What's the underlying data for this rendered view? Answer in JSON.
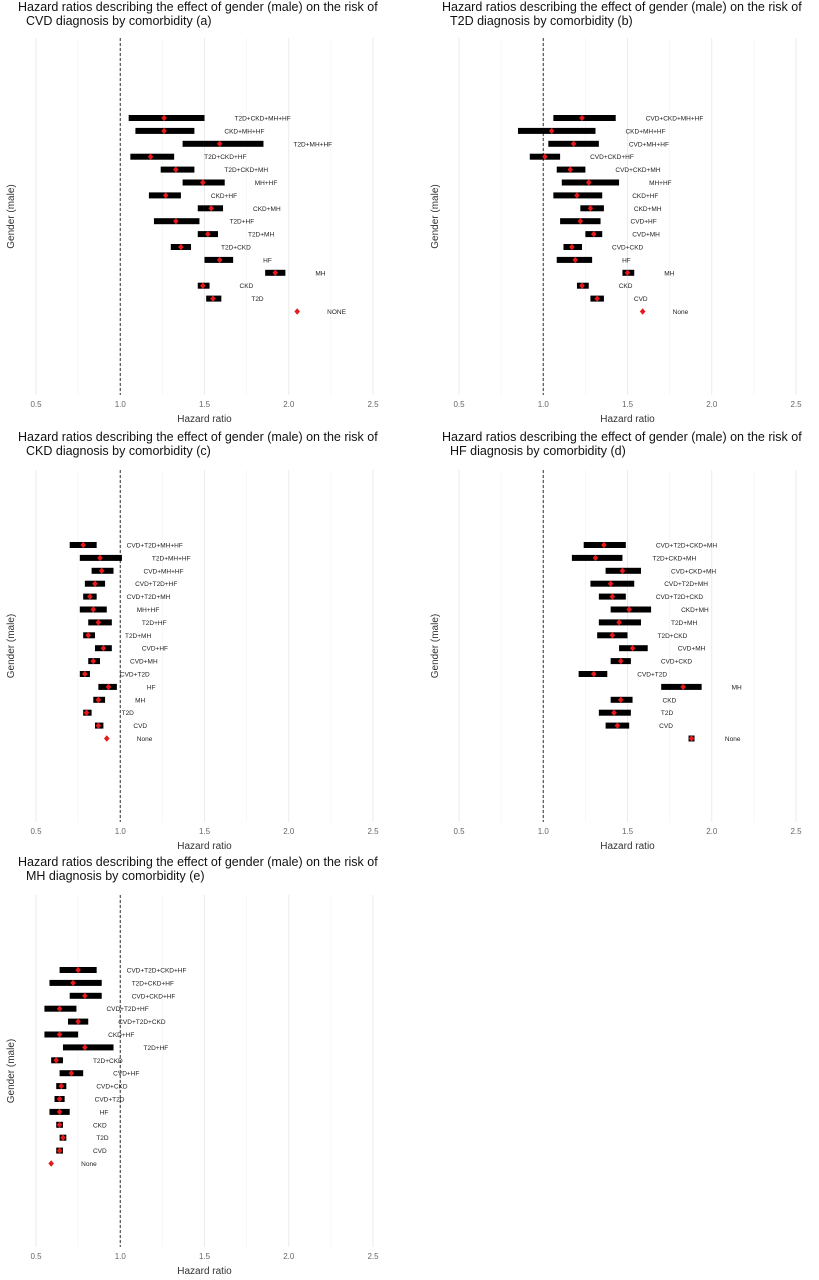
{
  "colors": {
    "bar": "#000000",
    "point": "#e41a1c",
    "grid": "#ebebeb",
    "ref": "#333333"
  },
  "chart_data": [
    {
      "type": "forest",
      "title": "Hazard ratios describing the effect of gender (male) on the risk of",
      "subtitle": "CVD diagnosis by comorbidity (a)",
      "xlabel": "Hazard ratio",
      "ylabel": "Gender (male)",
      "xlim": [
        0.4,
        2.75
      ],
      "xticks": [
        0.5,
        1.0,
        1.5,
        2.0,
        2.5
      ],
      "xtick_labels": [
        "0.5",
        "1.0",
        "1.5",
        "2.0",
        "2.5"
      ],
      "reference_line": 1.0,
      "rows": [
        {
          "label": "T2D+CKD+MH+HF",
          "hr": 1.26,
          "lo": 1.05,
          "hi": 1.5
        },
        {
          "label": "CKD+MH+HF",
          "hr": 1.26,
          "lo": 1.09,
          "hi": 1.44
        },
        {
          "label": "T2D+MH+HF",
          "hr": 1.59,
          "lo": 1.37,
          "hi": 1.85
        },
        {
          "label": "T2D+CKD+HF",
          "hr": 1.18,
          "lo": 1.06,
          "hi": 1.32
        },
        {
          "label": "T2D+CKD+MH",
          "hr": 1.33,
          "lo": 1.24,
          "hi": 1.44
        },
        {
          "label": "MH+HF",
          "hr": 1.49,
          "lo": 1.37,
          "hi": 1.62
        },
        {
          "label": "CKD+HF",
          "hr": 1.27,
          "lo": 1.17,
          "hi": 1.36
        },
        {
          "label": "CKD+MH",
          "hr": 1.54,
          "lo": 1.46,
          "hi": 1.61
        },
        {
          "label": "T2D+HF",
          "hr": 1.33,
          "lo": 1.2,
          "hi": 1.47
        },
        {
          "label": "T2D+MH",
          "hr": 1.52,
          "lo": 1.46,
          "hi": 1.58
        },
        {
          "label": "T2D+CKD",
          "hr": 1.36,
          "lo": 1.3,
          "hi": 1.42
        },
        {
          "label": "HF",
          "hr": 1.59,
          "lo": 1.5,
          "hi": 1.67
        },
        {
          "label": "MH",
          "hr": 1.92,
          "lo": 1.86,
          "hi": 1.98
        },
        {
          "label": "CKD",
          "hr": 1.49,
          "lo": 1.46,
          "hi": 1.53
        },
        {
          "label": "T2D",
          "hr": 1.55,
          "lo": 1.51,
          "hi": 1.6
        },
        {
          "label": "NONE",
          "hr": 2.05,
          "lo": 2.05,
          "hi": 2.05
        }
      ]
    },
    {
      "type": "forest",
      "title": "Hazard ratios describing the effect of gender (male) on the risk of",
      "subtitle": "T2D diagnosis by comorbidity (b)",
      "xlabel": "Hazard ratio",
      "ylabel": "Gender (male)",
      "xlim": [
        0.4,
        2.75
      ],
      "xticks": [
        0.5,
        1.0,
        1.5,
        2.0,
        2.5
      ],
      "xtick_labels": [
        "0.5",
        "1.0",
        "1.5",
        "2.0",
        "2.5"
      ],
      "reference_line": 1.0,
      "rows": [
        {
          "label": "CVD+CKD+MH+HF",
          "hr": 1.23,
          "lo": 1.06,
          "hi": 1.43
        },
        {
          "label": "CKD+MH+HF",
          "hr": 1.05,
          "lo": 0.85,
          "hi": 1.31
        },
        {
          "label": "CVD+MH+HF",
          "hr": 1.18,
          "lo": 1.03,
          "hi": 1.33
        },
        {
          "label": "CVD+CKD+HF",
          "hr": 1.01,
          "lo": 0.92,
          "hi": 1.1
        },
        {
          "label": "CVD+CKD+MH",
          "hr": 1.16,
          "lo": 1.08,
          "hi": 1.25
        },
        {
          "label": "MH+HF",
          "hr": 1.27,
          "lo": 1.11,
          "hi": 1.45
        },
        {
          "label": "CKD+HF",
          "hr": 1.2,
          "lo": 1.06,
          "hi": 1.35
        },
        {
          "label": "CKD+MH",
          "hr": 1.28,
          "lo": 1.22,
          "hi": 1.36
        },
        {
          "label": "CVD+HF",
          "hr": 1.22,
          "lo": 1.1,
          "hi": 1.34
        },
        {
          "label": "CVD+MH",
          "hr": 1.3,
          "lo": 1.25,
          "hi": 1.35
        },
        {
          "label": "CVD+CKD",
          "hr": 1.17,
          "lo": 1.12,
          "hi": 1.23
        },
        {
          "label": "HF",
          "hr": 1.19,
          "lo": 1.08,
          "hi": 1.29
        },
        {
          "label": "MH",
          "hr": 1.5,
          "lo": 1.47,
          "hi": 1.54
        },
        {
          "label": "CKD",
          "hr": 1.23,
          "lo": 1.2,
          "hi": 1.27
        },
        {
          "label": "CVD",
          "hr": 1.32,
          "lo": 1.28,
          "hi": 1.36
        },
        {
          "label": "None",
          "hr": 1.59,
          "lo": 1.59,
          "hi": 1.59
        }
      ]
    },
    {
      "type": "forest",
      "title": "Hazard ratios describing the effect of gender (male) on the risk of",
      "subtitle": "CKD diagnosis by comorbidity (c)",
      "xlabel": "Hazard ratio",
      "ylabel": "Gender (male)",
      "xlim": [
        0.4,
        2.75
      ],
      "xticks": [
        0.5,
        1.0,
        1.5,
        2.0,
        2.5
      ],
      "xtick_labels": [
        "0.5",
        "1.0",
        "1.5",
        "2.0",
        "2.5"
      ],
      "reference_line": 1.0,
      "rows": [
        {
          "label": "CVD+T2D+MH+HF",
          "hr": 0.78,
          "lo": 0.7,
          "hi": 0.86
        },
        {
          "label": "T2D+MH+HF",
          "hr": 0.88,
          "lo": 0.76,
          "hi": 1.01
        },
        {
          "label": "CVD+MH+HF",
          "hr": 0.89,
          "lo": 0.83,
          "hi": 0.96
        },
        {
          "label": "CVD+T2D+HF",
          "hr": 0.85,
          "lo": 0.79,
          "hi": 0.91
        },
        {
          "label": "CVD+T2D+MH",
          "hr": 0.82,
          "lo": 0.78,
          "hi": 0.86
        },
        {
          "label": "MH+HF",
          "hr": 0.84,
          "lo": 0.76,
          "hi": 0.92
        },
        {
          "label": "T2D+HF",
          "hr": 0.87,
          "lo": 0.81,
          "hi": 0.95
        },
        {
          "label": "T2D+MH",
          "hr": 0.81,
          "lo": 0.78,
          "hi": 0.85
        },
        {
          "label": "CVD+HF",
          "hr": 0.9,
          "lo": 0.85,
          "hi": 0.95
        },
        {
          "label": "CVD+MH",
          "hr": 0.84,
          "lo": 0.81,
          "hi": 0.88
        },
        {
          "label": "CVD+T2D",
          "hr": 0.79,
          "lo": 0.76,
          "hi": 0.82
        },
        {
          "label": "HF",
          "hr": 0.93,
          "lo": 0.87,
          "hi": 0.98
        },
        {
          "label": "MH",
          "hr": 0.87,
          "lo": 0.84,
          "hi": 0.91
        },
        {
          "label": "T2D",
          "hr": 0.8,
          "lo": 0.78,
          "hi": 0.83
        },
        {
          "label": "CVD",
          "hr": 0.87,
          "lo": 0.85,
          "hi": 0.9
        },
        {
          "label": "None",
          "hr": 0.92,
          "lo": 0.92,
          "hi": 0.92
        }
      ]
    },
    {
      "type": "forest",
      "title": "Hazard ratios describing the effect of gender (male) on the risk of",
      "subtitle": "HF diagnosis by comorbidity (d)",
      "xlabel": "Hazard ratio",
      "ylabel": "Gender (male)",
      "xlim": [
        0.4,
        2.75
      ],
      "xticks": [
        0.5,
        1.0,
        1.5,
        2.0,
        2.5
      ],
      "xtick_labels": [
        "0.5",
        "1.0",
        "1.5",
        "2.0",
        "2.5"
      ],
      "reference_line": 1.0,
      "rows": [
        {
          "label": "CVD+T2D+CKD+MH",
          "hr": 1.36,
          "lo": 1.24,
          "hi": 1.49
        },
        {
          "label": "T2D+CKD+MH",
          "hr": 1.31,
          "lo": 1.17,
          "hi": 1.47
        },
        {
          "label": "CVD+CKD+MH",
          "hr": 1.47,
          "lo": 1.37,
          "hi": 1.58
        },
        {
          "label": "CVD+T2D+MH",
          "hr": 1.4,
          "lo": 1.28,
          "hi": 1.54
        },
        {
          "label": "CVD+T2D+CKD",
          "hr": 1.41,
          "lo": 1.33,
          "hi": 1.49
        },
        {
          "label": "CKD+MH",
          "hr": 1.51,
          "lo": 1.4,
          "hi": 1.64
        },
        {
          "label": "T2D+MH",
          "hr": 1.45,
          "lo": 1.33,
          "hi": 1.58
        },
        {
          "label": "T2D+CKD",
          "hr": 1.41,
          "lo": 1.32,
          "hi": 1.5
        },
        {
          "label": "CVD+MH",
          "hr": 1.53,
          "lo": 1.45,
          "hi": 1.62
        },
        {
          "label": "CVD+CKD",
          "hr": 1.46,
          "lo": 1.4,
          "hi": 1.52
        },
        {
          "label": "CVD+T2D",
          "hr": 1.3,
          "lo": 1.21,
          "hi": 1.38
        },
        {
          "label": "MH",
          "hr": 1.83,
          "lo": 1.7,
          "hi": 1.94
        },
        {
          "label": "CKD",
          "hr": 1.46,
          "lo": 1.4,
          "hi": 1.53
        },
        {
          "label": "T2D",
          "hr": 1.42,
          "lo": 1.33,
          "hi": 1.52
        },
        {
          "label": "CVD",
          "hr": 1.44,
          "lo": 1.37,
          "hi": 1.51
        },
        {
          "label": "None",
          "hr": 1.88,
          "lo": 1.87,
          "hi": 1.9
        }
      ]
    },
    {
      "type": "forest",
      "title": "Hazard ratios describing the effect of gender (male) on the risk of",
      "subtitle": "MH diagnosis by comorbidity (e)",
      "xlabel": "Hazard ratio",
      "ylabel": "Gender (male)",
      "xlim": [
        0.4,
        2.75
      ],
      "xticks": [
        0.5,
        1.0,
        1.5,
        2.0,
        2.5
      ],
      "xtick_labels": [
        "0.5",
        "1.0",
        "1.5",
        "2.0",
        "2.5"
      ],
      "reference_line": 1.0,
      "rows": [
        {
          "label": "CVD+T2D+CKD+HF",
          "hr": 0.75,
          "lo": 0.64,
          "hi": 0.86
        },
        {
          "label": "T2D+CKD+HF",
          "hr": 0.72,
          "lo": 0.58,
          "hi": 0.89
        },
        {
          "label": "CVD+CKD+HF",
          "hr": 0.79,
          "lo": 0.7,
          "hi": 0.89
        },
        {
          "label": "CVD+T2D+HF",
          "hr": 0.64,
          "lo": 0.55,
          "hi": 0.74
        },
        {
          "label": "CVD+T2D+CKD",
          "hr": 0.75,
          "lo": 0.69,
          "hi": 0.81
        },
        {
          "label": "CKD+HF",
          "hr": 0.64,
          "lo": 0.55,
          "hi": 0.75
        },
        {
          "label": "T2D+HF",
          "hr": 0.79,
          "lo": 0.66,
          "hi": 0.96
        },
        {
          "label": "T2D+CKD",
          "hr": 0.62,
          "lo": 0.59,
          "hi": 0.66
        },
        {
          "label": "CVD+HF",
          "hr": 0.71,
          "lo": 0.64,
          "hi": 0.78
        },
        {
          "label": "CVD+CKD",
          "hr": 0.65,
          "lo": 0.62,
          "hi": 0.68
        },
        {
          "label": "CVD+T2D",
          "hr": 0.64,
          "lo": 0.61,
          "hi": 0.67
        },
        {
          "label": "HF",
          "hr": 0.64,
          "lo": 0.58,
          "hi": 0.7
        },
        {
          "label": "CKD",
          "hr": 0.64,
          "lo": 0.62,
          "hi": 0.66
        },
        {
          "label": "T2D",
          "hr": 0.66,
          "lo": 0.64,
          "hi": 0.68
        },
        {
          "label": "CVD",
          "hr": 0.64,
          "lo": 0.62,
          "hi": 0.66
        },
        {
          "label": "None",
          "hr": 0.59,
          "lo": 0.59,
          "hi": 0.59
        }
      ]
    }
  ]
}
